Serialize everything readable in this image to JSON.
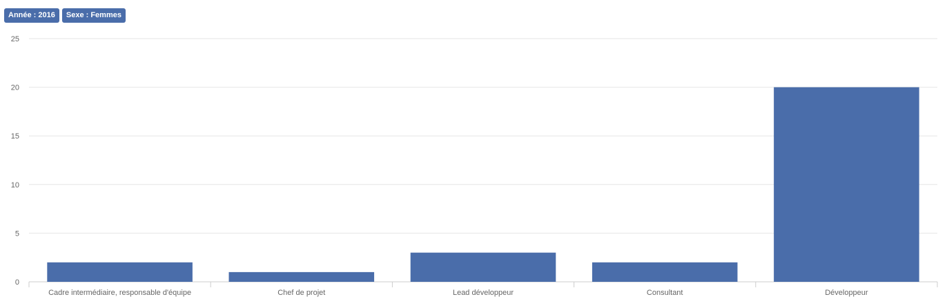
{
  "filters": [
    {
      "label": "Année : 2016"
    },
    {
      "label": "Sexe : Femmes"
    }
  ],
  "colors": {
    "bar": "#4a6daa",
    "grid": "#e6e6e6",
    "badge": "#4a6daa"
  },
  "chart_data": {
    "type": "bar",
    "title": "",
    "xlabel": "",
    "ylabel": "",
    "categories": [
      "Cadre intermédiaire, responsable d'équipe",
      "Chef de projet",
      "Lead développeur",
      "Consultant",
      "Développeur"
    ],
    "values": [
      2,
      1,
      3,
      2,
      20
    ],
    "ylim": [
      0,
      25
    ],
    "yticks": [
      0,
      5,
      10,
      15,
      20,
      25
    ],
    "grid": true,
    "legend": "none"
  }
}
